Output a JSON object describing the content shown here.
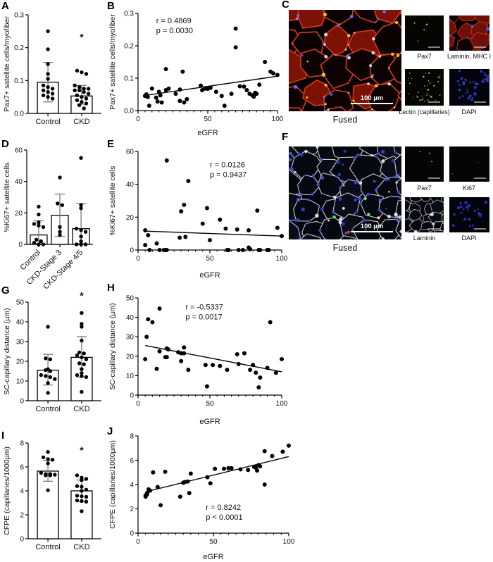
{
  "panels": {
    "A": {
      "letter": "A"
    },
    "B": {
      "letter": "B"
    },
    "C": {
      "letter": "C",
      "main_caption": "Fused",
      "scale_text": "100 µm",
      "thumbs": [
        "Pax7",
        "Laminin, MHC I",
        "Lectin (capillaries)",
        "DAPI"
      ]
    },
    "D": {
      "letter": "D"
    },
    "E": {
      "letter": "E"
    },
    "F": {
      "letter": "F",
      "main_caption": "Fused",
      "scale_text": "100 µm",
      "thumbs": [
        "Pax7",
        "Ki67",
        "Laminin",
        "DAPI"
      ]
    },
    "G": {
      "letter": "G"
    },
    "H": {
      "letter": "H"
    },
    "I": {
      "letter": "I"
    },
    "J": {
      "letter": "J"
    }
  },
  "chart_data": [
    {
      "id": "A",
      "type": "bar",
      "ylabel": "Pax7+ satellite cells/myofiber",
      "ylim": [
        0,
        0.3
      ],
      "yticks": [
        "0.0",
        "0.1",
        "0.2",
        "0.3"
      ],
      "categories": [
        "Control",
        "CKD"
      ],
      "bar_means": [
        0.095,
        0.053
      ],
      "error_low": [
        0.035,
        0.028
      ],
      "error_high": [
        0.155,
        0.085
      ],
      "points": [
        [
          0.25,
          0.195,
          0.15,
          0.12,
          0.105,
          0.085,
          0.08,
          0.075,
          0.07,
          0.065,
          0.06,
          0.055,
          0.05,
          0.045
        ],
        [
          0.13,
          0.125,
          0.12,
          0.085,
          0.08,
          0.075,
          0.075,
          0.07,
          0.07,
          0.065,
          0.06,
          0.055,
          0.05,
          0.045,
          0.04,
          0.035,
          0.03,
          0.025,
          0.015
        ]
      ],
      "significance": {
        "label": "*",
        "category_index": 1,
        "y": 0.23
      }
    },
    {
      "id": "B",
      "type": "scatter",
      "xlabel": "eGFR",
      "xlim": [
        0,
        100
      ],
      "xticks": [
        "0",
        "50",
        "100"
      ],
      "xminor": 5,
      "ylabel": "Pax7+ satellite cells/myofiber",
      "ylim": [
        0,
        0.3
      ],
      "yticks": [
        "0.0",
        "0.1",
        "0.2",
        "0.3"
      ],
      "stats": {
        "r": "r = 0.4869",
        "p": "p = 0.0030"
      },
      "annotation_pos": {
        "fx": 0.13,
        "fy": 0.1
      },
      "regression": {
        "x": [
          4,
          100
        ],
        "y": [
          0.046,
          0.106
        ]
      },
      "points": [
        [
          5,
          0.045
        ],
        [
          6,
          0.05
        ],
        [
          7,
          0.042
        ],
        [
          8,
          0.015
        ],
        [
          10,
          0.068
        ],
        [
          13,
          0.04
        ],
        [
          14,
          0.028
        ],
        [
          15,
          0.058
        ],
        [
          16,
          0.047
        ],
        [
          17,
          0.025
        ],
        [
          20,
          0.128
        ],
        [
          20,
          0.063
        ],
        [
          22,
          0.068
        ],
        [
          27,
          0.052
        ],
        [
          30,
          0.065
        ],
        [
          30,
          0.03
        ],
        [
          32,
          0.12
        ],
        [
          33,
          0.025
        ],
        [
          35,
          0.035
        ],
        [
          45,
          0.077
        ],
        [
          46,
          0.063
        ],
        [
          48,
          0.068
        ],
        [
          50,
          0.067
        ],
        [
          52,
          0.07
        ],
        [
          56,
          0.058
        ],
        [
          60,
          0.045
        ],
        [
          62,
          0.015
        ],
        [
          67,
          0.052
        ],
        [
          70,
          0.253
        ],
        [
          70,
          0.195
        ],
        [
          73,
          0.075
        ],
        [
          76,
          0.074
        ],
        [
          78,
          0.063
        ],
        [
          80,
          0.052
        ],
        [
          82,
          0.047
        ],
        [
          83,
          0.043
        ],
        [
          84,
          0.055
        ],
        [
          85,
          0.052
        ],
        [
          87,
          0.08
        ],
        [
          91,
          0.15
        ],
        [
          95,
          0.12
        ],
        [
          97,
          0.115
        ],
        [
          100,
          0.11
        ]
      ]
    },
    {
      "id": "D",
      "type": "bar",
      "ylabel": "%Ki67+ satellite cells",
      "ylim": [
        0,
        60
      ],
      "yticks": [
        "0",
        "20",
        "40",
        "60"
      ],
      "categories": [
        "Control",
        "CKD-Stage 3",
        "CKD-Stage 4/5"
      ],
      "rotate_labels": true,
      "bar_means": [
        6,
        18.5,
        10
      ],
      "error_low": [
        0.5,
        5,
        0.5
      ],
      "error_high": [
        15,
        32,
        26
      ],
      "points": [
        [
          0,
          0,
          1,
          2,
          3,
          11,
          12,
          13,
          14,
          19,
          24
        ],
        [
          6,
          8,
          11,
          25,
          26,
          42.5
        ],
        [
          0,
          0,
          0,
          2,
          5,
          8,
          9,
          10,
          23,
          25,
          55
        ]
      ]
    },
    {
      "id": "E",
      "type": "scatter",
      "xlabel": "eGFR",
      "xlim": [
        0,
        100
      ],
      "xticks": [
        "0",
        "50",
        "100"
      ],
      "xminor": 5,
      "ylabel": "%Ki67+ satellite cells",
      "ylim": [
        0,
        60
      ],
      "yticks": [
        "0",
        "20",
        "40",
        "60"
      ],
      "stats": {
        "r": "r = 0.0126",
        "p": "p = 0.9437"
      },
      "annotation_pos": {
        "fx": 0.5,
        "fy": 0.16
      },
      "regression": {
        "x": [
          5,
          100
        ],
        "y": [
          11.5,
          8.5
        ]
      },
      "points": [
        [
          5,
          12
        ],
        [
          5,
          3
        ],
        [
          7,
          9
        ],
        [
          8,
          0
        ],
        [
          13,
          4
        ],
        [
          15,
          0
        ],
        [
          18,
          0
        ],
        [
          19,
          0
        ],
        [
          20,
          0
        ],
        [
          20,
          54.5
        ],
        [
          29,
          7.5
        ],
        [
          30,
          23.5
        ],
        [
          32,
          27.5
        ],
        [
          33,
          8
        ],
        [
          35,
          42
        ],
        [
          45,
          16
        ],
        [
          48,
          25.5
        ],
        [
          50,
          6
        ],
        [
          57,
          18.5
        ],
        [
          61,
          13
        ],
        [
          62,
          0
        ],
        [
          63,
          0
        ],
        [
          69,
          12.5
        ],
        [
          70,
          0
        ],
        [
          73,
          0
        ],
        [
          77,
          1.5
        ],
        [
          77,
          12
        ],
        [
          78,
          0.5
        ],
        [
          83,
          24
        ],
        [
          84,
          0
        ],
        [
          85,
          0
        ],
        [
          90,
          0
        ],
        [
          91,
          0
        ],
        [
          97,
          13.5
        ],
        [
          100,
          8.5
        ]
      ]
    },
    {
      "id": "G",
      "type": "bar",
      "ylabel": "SC-capillary distance (µm)",
      "ylim": [
        0,
        50
      ],
      "yticks": [
        "0",
        "10",
        "20",
        "30",
        "40",
        "50"
      ],
      "categories": [
        "Control",
        "CKD"
      ],
      "bar_means": [
        15.5,
        22
      ],
      "error_low": [
        8,
        12
      ],
      "error_high": [
        23.5,
        32.5
      ],
      "points": [
        [
          4,
          9,
          11,
          12,
          12.5,
          13,
          15,
          15.5,
          16,
          21,
          21.5,
          37.5
        ],
        [
          4.5,
          12,
          12.5,
          13,
          14,
          16,
          18.5,
          19,
          21,
          22,
          23,
          24,
          24.5,
          30.5,
          37.5,
          39,
          44.5
        ]
      ],
      "significance": {
        "label": "*",
        "category_index": 1,
        "y": 53
      }
    },
    {
      "id": "H",
      "type": "scatter",
      "xlabel": "eGFR",
      "xlim": [
        0,
        100
      ],
      "xticks": [
        "0",
        "50",
        "100"
      ],
      "xminor": 5,
      "ylabel": "SC-capillary distance (µm)",
      "ylim": [
        0,
        50
      ],
      "yticks": [
        "0",
        "10",
        "20",
        "30",
        "40",
        "50"
      ],
      "stats": {
        "r": "r = -0.5337",
        "p": "p = 0.0017"
      },
      "annotation_pos": {
        "fx": 0.33,
        "fy": 0.12
      },
      "regression": {
        "x": [
          5,
          100
        ],
        "y": [
          25.5,
          12
        ]
      },
      "points": [
        [
          5,
          18.5
        ],
        [
          6,
          30
        ],
        [
          7,
          39
        ],
        [
          10,
          37.5
        ],
        [
          13,
          13.5
        ],
        [
          15,
          44.5
        ],
        [
          15,
          22.5
        ],
        [
          19,
          19.5
        ],
        [
          20,
          19.5
        ],
        [
          20,
          24
        ],
        [
          21,
          23.5
        ],
        [
          28,
          22
        ],
        [
          30,
          21.5
        ],
        [
          30,
          17.5
        ],
        [
          32,
          24.5
        ],
        [
          32,
          21.5
        ],
        [
          35,
          13
        ],
        [
          47,
          15.5
        ],
        [
          48,
          4.5
        ],
        [
          52,
          15.5
        ],
        [
          57,
          15
        ],
        [
          62,
          13
        ],
        [
          69,
          21
        ],
        [
          70,
          16
        ],
        [
          74,
          21.5
        ],
        [
          78,
          13
        ],
        [
          80,
          15.5
        ],
        [
          82,
          11.5
        ],
        [
          84,
          4
        ],
        [
          85,
          9
        ],
        [
          90,
          14
        ],
        [
          92,
          37.5
        ],
        [
          96,
          11.5
        ],
        [
          100,
          18.5
        ]
      ]
    },
    {
      "id": "I",
      "type": "bar",
      "ylabel": "CFPE (capillaries/1000µm)",
      "ylim": [
        0,
        8
      ],
      "yticks": [
        "0",
        "2",
        "4",
        "6",
        "8"
      ],
      "categories": [
        "Control",
        "CKD"
      ],
      "bar_means": [
        5.65,
        4.0
      ],
      "error_low": [
        4.8,
        3.1
      ],
      "error_high": [
        6.55,
        4.9
      ],
      "points": [
        [
          4.05,
          5.3,
          5.3,
          5.35,
          5.4,
          5.4,
          5.5,
          6.3,
          6.6,
          6.65,
          6.8,
          7.25
        ],
        [
          2.3,
          3.1,
          3.15,
          3.2,
          3.5,
          3.55,
          3.6,
          4.0,
          4.1,
          4.35,
          4.4,
          4.9,
          5.0,
          5.1,
          5.3
        ]
      ],
      "significance": {
        "label": "*",
        "category_index": 1,
        "y": 7.35
      }
    },
    {
      "id": "J",
      "type": "scatter",
      "xlabel": "eGFR",
      "xlim": [
        0,
        100
      ],
      "xticks": [
        "0",
        "50",
        "100"
      ],
      "xminor": 5,
      "ylabel": "CFPE (capillaries/1000µm)",
      "ylim": [
        0,
        8
      ],
      "yticks": [
        "0",
        "2",
        "4",
        "6",
        "8"
      ],
      "stats": {
        "r": "r = 0.8242",
        "p": "p < 0.0001"
      },
      "annotation_pos": {
        "fx": 0.45,
        "fy": 0.76
      },
      "regression": {
        "x": [
          5,
          100
        ],
        "y": [
          3.4,
          6.3
        ]
      },
      "points": [
        [
          5,
          3.0
        ],
        [
          5,
          3.1
        ],
        [
          6,
          3.2
        ],
        [
          6,
          3.3
        ],
        [
          7,
          3.6
        ],
        [
          8,
          3.5
        ],
        [
          10,
          5.0
        ],
        [
          13,
          3.8
        ],
        [
          15,
          2.3
        ],
        [
          18,
          5.05
        ],
        [
          28,
          3.0
        ],
        [
          30,
          4.15
        ],
        [
          31,
          4.2
        ],
        [
          33,
          4.25
        ],
        [
          34,
          3.3
        ],
        [
          35,
          4.9
        ],
        [
          46,
          4.6
        ],
        [
          48,
          4.1
        ],
        [
          51,
          5.3
        ],
        [
          57,
          5.3
        ],
        [
          60,
          5.35
        ],
        [
          62,
          5.35
        ],
        [
          68,
          5.25
        ],
        [
          73,
          5.2
        ],
        [
          77,
          5.45
        ],
        [
          78,
          5.4
        ],
        [
          79,
          5.15
        ],
        [
          80,
          5.6
        ],
        [
          81,
          5.5
        ],
        [
          84,
          4.0
        ],
        [
          84,
          6.75
        ],
        [
          89,
          6.35
        ],
        [
          96,
          6.7
        ],
        [
          100,
          7.2
        ]
      ]
    }
  ]
}
